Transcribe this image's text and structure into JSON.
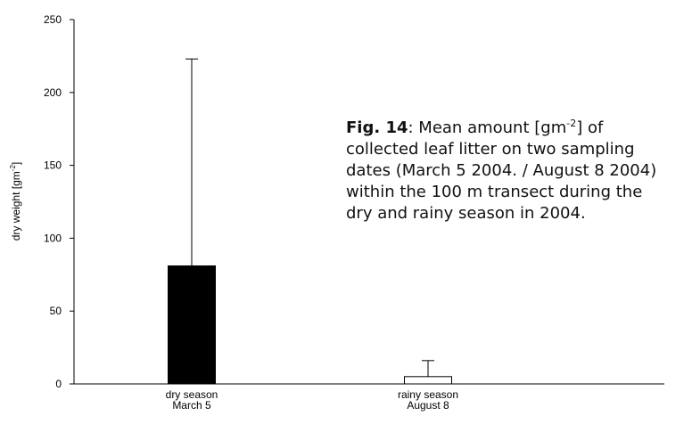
{
  "chart_data": {
    "type": "bar",
    "y_label": [
      "dry weight [gm",
      "-2",
      "]"
    ],
    "categories": [
      [
        "dry season",
        "March 5"
      ],
      [
        "rainy season",
        "August 8"
      ]
    ],
    "values": [
      81,
      5
    ],
    "errors": [
      142,
      11
    ],
    "colors": [
      "#000000",
      "#ffffff"
    ],
    "edge_color": "#000000",
    "ylim": [
      0,
      250
    ],
    "yticks": [
      0,
      50,
      100,
      150,
      200,
      250
    ],
    "grid": false
  },
  "caption": {
    "label": "Fig. 14",
    "first_line": [
      ": Mean amount [gm",
      "-2",
      "] of"
    ],
    "lines": [
      "collected leaf litter on two sampling",
      "dates (March 5 2004. / August 8 2004)",
      "within the 100 m transect during the",
      "dry and rainy season in 2004."
    ]
  }
}
